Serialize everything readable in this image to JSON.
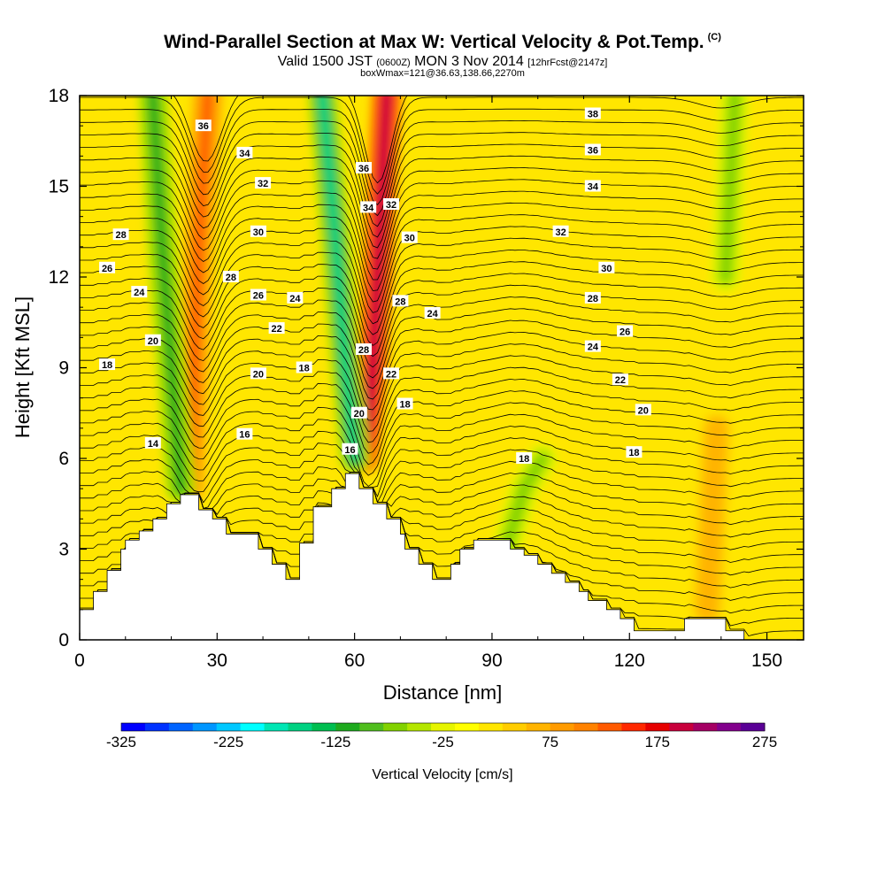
{
  "title": {
    "main": "Wind-Parallel Section at Max W: Vertical Velocity & Pot.Temp.",
    "copyright": "(C)",
    "valid_prefix": "Valid 1500 JST",
    "valid_utc": "(0600Z)",
    "valid_date": "MON 3 Nov 2014",
    "forecast": "[12hrFcst@2147z]",
    "box": "boxWmax=121@36.63,138.66,2270m"
  },
  "chart_data": {
    "type": "heatmap",
    "xlabel": "Distance [nm]",
    "ylabel": "Height [Kft MSL]",
    "xlim": [
      0,
      158
    ],
    "ylim": [
      0,
      18
    ],
    "x_ticks": [
      "0",
      "30",
      "60",
      "90",
      "120",
      "150"
    ],
    "y_ticks": [
      "0",
      "3",
      "6",
      "9",
      "12",
      "15",
      "18"
    ],
    "colorbar": {
      "label": "Vertical Velocity [cm/s]",
      "tick_labels": [
        "-325",
        "-225",
        "-125",
        "-25",
        "75",
        "175",
        "275"
      ],
      "range": [
        -325,
        275
      ],
      "colors": [
        "#0000ff",
        "#0032ff",
        "#0064ff",
        "#0096ff",
        "#00c8ff",
        "#00ffff",
        "#00e6b4",
        "#00d282",
        "#00be50",
        "#1eaa1e",
        "#50be1e",
        "#82d200",
        "#b4e600",
        "#e6f500",
        "#ffff00",
        "#ffe600",
        "#ffcd00",
        "#ffb400",
        "#ff9b00",
        "#ff8200",
        "#ff5a00",
        "#ff2800",
        "#e60000",
        "#c8003c",
        "#a50064",
        "#82008c",
        "#5a0096"
      ]
    },
    "terrain": [
      [
        0,
        1.0
      ],
      [
        3,
        1.0
      ],
      [
        3,
        1.6
      ],
      [
        6,
        1.6
      ],
      [
        6,
        2.3
      ],
      [
        9,
        2.3
      ],
      [
        9,
        3.0
      ],
      [
        10,
        3.0
      ],
      [
        10,
        3.3
      ],
      [
        13,
        3.3
      ],
      [
        13,
        3.6
      ],
      [
        16,
        3.6
      ],
      [
        16,
        4.0
      ],
      [
        19,
        4.0
      ],
      [
        19,
        4.5
      ],
      [
        22,
        4.5
      ],
      [
        22,
        4.8
      ],
      [
        26,
        4.8
      ],
      [
        26,
        4.3
      ],
      [
        29,
        4.3
      ],
      [
        29,
        4.0
      ],
      [
        32,
        4.0
      ],
      [
        32,
        3.5
      ],
      [
        39,
        3.5
      ],
      [
        39,
        3.0
      ],
      [
        42,
        3.0
      ],
      [
        42,
        2.5
      ],
      [
        45,
        2.5
      ],
      [
        45,
        2.0
      ],
      [
        48,
        2.0
      ],
      [
        48,
        3.2
      ],
      [
        51,
        3.2
      ],
      [
        51,
        4.4
      ],
      [
        55,
        4.4
      ],
      [
        55,
        5.0
      ],
      [
        58,
        5.0
      ],
      [
        58,
        5.5
      ],
      [
        61,
        5.5
      ],
      [
        61,
        5.0
      ],
      [
        64,
        5.0
      ],
      [
        64,
        4.5
      ],
      [
        67,
        4.5
      ],
      [
        67,
        4.0
      ],
      [
        70,
        4.0
      ],
      [
        70,
        3.5
      ],
      [
        71,
        3.5
      ],
      [
        71,
        3.0
      ],
      [
        74,
        3.0
      ],
      [
        74,
        2.5
      ],
      [
        77,
        2.5
      ],
      [
        77,
        2.0
      ],
      [
        81,
        2.0
      ],
      [
        81,
        2.5
      ],
      [
        83,
        2.5
      ],
      [
        83,
        3.0
      ],
      [
        86,
        3.0
      ],
      [
        86,
        3.3
      ],
      [
        94,
        3.3
      ],
      [
        94,
        3.0
      ],
      [
        97,
        3.0
      ],
      [
        97,
        2.8
      ],
      [
        100,
        2.8
      ],
      [
        100,
        2.5
      ],
      [
        103,
        2.5
      ],
      [
        103,
        2.2
      ],
      [
        106,
        2.2
      ],
      [
        106,
        1.9
      ],
      [
        109,
        1.9
      ],
      [
        109,
        1.6
      ],
      [
        111,
        1.6
      ],
      [
        111,
        1.3
      ],
      [
        115,
        1.3
      ],
      [
        115,
        1.0
      ],
      [
        118,
        1.0
      ],
      [
        118,
        0.7
      ],
      [
        121,
        0.7
      ],
      [
        121,
        0.3
      ],
      [
        132,
        0.3
      ],
      [
        132,
        0.7
      ],
      [
        141,
        0.7
      ],
      [
        141,
        0.3
      ],
      [
        145,
        0.3
      ],
      [
        145,
        0.0
      ],
      [
        158,
        0.0
      ]
    ],
    "velocity_features": [
      {
        "type": "updraft",
        "path": [
          [
            24,
            5
          ],
          [
            25,
            9
          ],
          [
            26,
            13
          ],
          [
            28,
            18
          ]
        ],
        "peak": 120
      },
      {
        "type": "downdraft",
        "path": [
          [
            22,
            5
          ],
          [
            20,
            9
          ],
          [
            18,
            13
          ],
          [
            16,
            18
          ]
        ],
        "peak": -120
      },
      {
        "type": "updraft",
        "path": [
          [
            62,
            6
          ],
          [
            64,
            9
          ],
          [
            65,
            12
          ],
          [
            67,
            18
          ]
        ],
        "peak": 200
      },
      {
        "type": "downdraft",
        "path": [
          [
            60,
            6
          ],
          [
            58,
            9
          ],
          [
            56,
            13
          ],
          [
            53,
            18
          ]
        ],
        "peak": -150
      },
      {
        "type": "downdraft",
        "path": [
          [
            93,
            3
          ],
          [
            97,
            5
          ],
          [
            101,
            6
          ]
        ],
        "peak": -80
      },
      {
        "type": "updraft",
        "path": [
          [
            137,
            1
          ],
          [
            138,
            4
          ],
          [
            139,
            7
          ]
        ],
        "peak": 70
      },
      {
        "type": "downdraft",
        "path": [
          [
            141,
            12
          ],
          [
            142,
            15
          ],
          [
            143,
            18
          ]
        ],
        "peak": -60
      }
    ],
    "theta_contour_labels": [
      {
        "text": "36",
        "x": 27,
        "y": 17.0
      },
      {
        "text": "34",
        "x": 36,
        "y": 16.1
      },
      {
        "text": "32",
        "x": 40,
        "y": 15.1
      },
      {
        "text": "30",
        "x": 39,
        "y": 13.5
      },
      {
        "text": "28",
        "x": 33,
        "y": 12.0
      },
      {
        "text": "26",
        "x": 39,
        "y": 11.4
      },
      {
        "text": "24",
        "x": 47,
        "y": 11.3
      },
      {
        "text": "22",
        "x": 43,
        "y": 10.3
      },
      {
        "text": "20",
        "x": 39,
        "y": 8.8
      },
      {
        "text": "18",
        "x": 49,
        "y": 9.0
      },
      {
        "text": "16",
        "x": 36,
        "y": 6.8
      },
      {
        "text": "14",
        "x": 16,
        "y": 6.5
      },
      {
        "text": "28",
        "x": 9,
        "y": 13.4
      },
      {
        "text": "26",
        "x": 6,
        "y": 12.3
      },
      {
        "text": "24",
        "x": 13,
        "y": 11.5
      },
      {
        "text": "20",
        "x": 16,
        "y": 9.9
      },
      {
        "text": "18",
        "x": 6,
        "y": 9.1
      },
      {
        "text": "36",
        "x": 62,
        "y": 15.6
      },
      {
        "text": "34",
        "x": 63,
        "y": 14.3
      },
      {
        "text": "32",
        "x": 68,
        "y": 14.4
      },
      {
        "text": "30",
        "x": 72,
        "y": 13.3
      },
      {
        "text": "28",
        "x": 70,
        "y": 11.2
      },
      {
        "text": "24",
        "x": 77,
        "y": 10.8
      },
      {
        "text": "28",
        "x": 62,
        "y": 9.6
      },
      {
        "text": "22",
        "x": 68,
        "y": 8.8
      },
      {
        "text": "18",
        "x": 71,
        "y": 7.8
      },
      {
        "text": "20",
        "x": 61,
        "y": 7.5
      },
      {
        "text": "16",
        "x": 59,
        "y": 6.3
      },
      {
        "text": "38",
        "x": 112,
        "y": 17.4
      },
      {
        "text": "36",
        "x": 112,
        "y": 16.2
      },
      {
        "text": "34",
        "x": 112,
        "y": 15.0
      },
      {
        "text": "32",
        "x": 105,
        "y": 13.5
      },
      {
        "text": "30",
        "x": 115,
        "y": 12.3
      },
      {
        "text": "28",
        "x": 112,
        "y": 11.3
      },
      {
        "text": "26",
        "x": 119,
        "y": 10.2
      },
      {
        "text": "24",
        "x": 112,
        "y": 9.7
      },
      {
        "text": "22",
        "x": 118,
        "y": 8.6
      },
      {
        "text": "20",
        "x": 123,
        "y": 7.6
      },
      {
        "text": "18",
        "x": 121,
        "y": 6.2
      },
      {
        "text": "18",
        "x": 97,
        "y": 6.0
      }
    ]
  }
}
